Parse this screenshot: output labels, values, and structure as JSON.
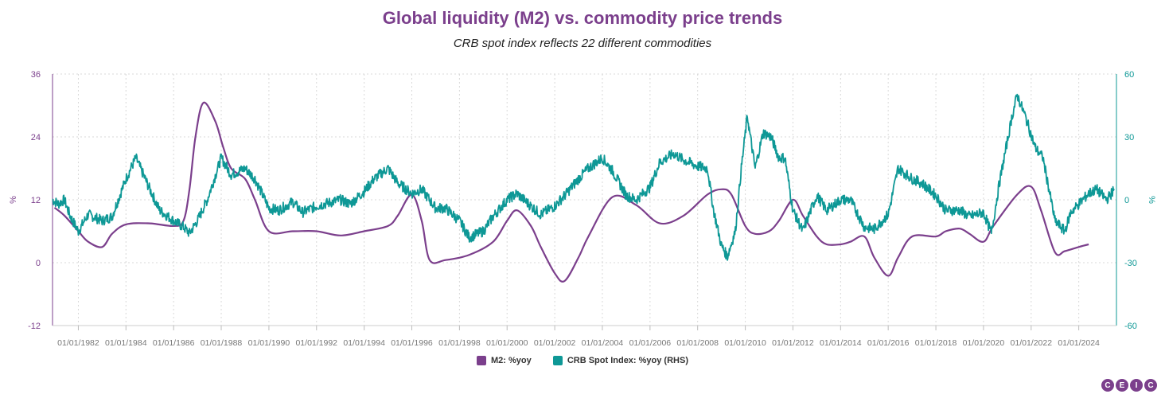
{
  "chart_data": {
    "type": "line",
    "title": "Global liquidity (M2) vs. commodity price trends",
    "subtitle": "CRB spot index reflects 22 different commodities",
    "colors": {
      "title": "#7b3f8c",
      "m2": "#7b3f8c",
      "crb": "#0e9896"
    },
    "x_start": "1980-12-01",
    "x_end": "2025-08-01",
    "x_tick_labels": [
      "01/01/1982",
      "01/01/1984",
      "01/01/1986",
      "01/01/1988",
      "01/01/1990",
      "01/01/1992",
      "01/01/1994",
      "01/01/1996",
      "01/01/1998",
      "01/01/2000",
      "01/01/2002",
      "01/01/2004",
      "01/01/2006",
      "01/01/2008",
      "01/01/2010",
      "01/01/2012",
      "01/01/2014",
      "01/01/2016",
      "01/01/2018",
      "01/01/2020",
      "01/01/2022",
      "01/01/2024"
    ],
    "y_left": {
      "label": "%",
      "min": -12,
      "max": 36,
      "ticks": [
        -12,
        0,
        12,
        24,
        36
      ]
    },
    "y_right": {
      "label": "%",
      "min": -60,
      "max": 60,
      "ticks": [
        -60,
        -30,
        0,
        30,
        60
      ]
    },
    "grid": true,
    "legend_position": "bottom",
    "series": [
      {
        "name": "M2: %yoy",
        "axis": "left",
        "points": [
          [
            "1981-01",
            10.5
          ],
          [
            "1981-06",
            9.0
          ],
          [
            "1982-01",
            6.0
          ],
          [
            "1982-06",
            4.0
          ],
          [
            "1983-01",
            3.0
          ],
          [
            "1983-06",
            5.5
          ],
          [
            "1984-01",
            7.3
          ],
          [
            "1985-01",
            7.5
          ],
          [
            "1986-01",
            7.0
          ],
          [
            "1986-06",
            8.0
          ],
          [
            "1986-09",
            14.0
          ],
          [
            "1986-12",
            24.0
          ],
          [
            "1987-04",
            30.5
          ],
          [
            "1987-10",
            27.0
          ],
          [
            "1988-02",
            22.0
          ],
          [
            "1988-06",
            18.0
          ],
          [
            "1989-01",
            16.0
          ],
          [
            "1989-06",
            12.0
          ],
          [
            "1990-01",
            6.0
          ],
          [
            "1991-01",
            6.0
          ],
          [
            "1992-01",
            6.0
          ],
          [
            "1993-01",
            5.2
          ],
          [
            "1994-01",
            6.0
          ],
          [
            "1995-01",
            7.0
          ],
          [
            "1995-06",
            9.0
          ],
          [
            "1996-01",
            13.0
          ],
          [
            "1996-06",
            8.0
          ],
          [
            "1996-10",
            0.5
          ],
          [
            "1997-06",
            0.5
          ],
          [
            "1998-06",
            1.5
          ],
          [
            "1999-06",
            4.0
          ],
          [
            "2000-01",
            8.0
          ],
          [
            "2000-06",
            10.0
          ],
          [
            "2001-01",
            7.0
          ],
          [
            "2001-06",
            3.0
          ],
          [
            "2002-01",
            -2.0
          ],
          [
            "2002-06",
            -3.5
          ],
          [
            "2003-01",
            1.0
          ],
          [
            "2003-06",
            5.0
          ],
          [
            "2004-06",
            12.5
          ],
          [
            "2005-06",
            11.0
          ],
          [
            "2006-06",
            7.5
          ],
          [
            "2007-06",
            9.0
          ],
          [
            "2008-06",
            13.0
          ],
          [
            "2009-01",
            14.0
          ],
          [
            "2009-06",
            13.0
          ],
          [
            "2010-01",
            7.0
          ],
          [
            "2010-06",
            5.5
          ],
          [
            "2011-01",
            6.0
          ],
          [
            "2011-06",
            8.0
          ],
          [
            "2012-01",
            12.0
          ],
          [
            "2012-06",
            9.0
          ],
          [
            "2013-01",
            5.0
          ],
          [
            "2013-06",
            3.5
          ],
          [
            "2014-01",
            3.5
          ],
          [
            "2014-06",
            4.0
          ],
          [
            "2015-01",
            5.0
          ],
          [
            "2015-06",
            1.0
          ],
          [
            "2016-01",
            -2.5
          ],
          [
            "2016-06",
            1.0
          ],
          [
            "2017-01",
            5.0
          ],
          [
            "2018-01",
            5.0
          ],
          [
            "2018-06",
            6.0
          ],
          [
            "2019-01",
            6.5
          ],
          [
            "2019-06",
            5.5
          ],
          [
            "2020-01",
            4.0
          ],
          [
            "2020-06",
            7.0
          ],
          [
            "2021-06",
            13.0
          ],
          [
            "2022-01",
            14.5
          ],
          [
            "2022-06",
            10.0
          ],
          [
            "2023-01",
            2.0
          ],
          [
            "2023-06",
            2.2
          ],
          [
            "2024-01",
            3.0
          ],
          [
            "2024-06",
            3.5
          ]
        ]
      },
      {
        "name": "CRB Spot Index: %yoy (RHS)",
        "axis": "right",
        "points": [
          [
            "1980-12",
            0
          ],
          [
            "1981-03",
            -2
          ],
          [
            "1981-06",
            0
          ],
          [
            "1981-09",
            -8
          ],
          [
            "1982-01",
            -15
          ],
          [
            "1982-06",
            -7
          ],
          [
            "1983-01",
            -10
          ],
          [
            "1983-06",
            -8
          ],
          [
            "1984-01",
            10
          ],
          [
            "1984-06",
            20
          ],
          [
            "1985-01",
            5
          ],
          [
            "1985-06",
            -5
          ],
          [
            "1986-01",
            -10
          ],
          [
            "1986-06",
            -13
          ],
          [
            "1986-09",
            -16
          ],
          [
            "1987-01",
            -10
          ],
          [
            "1987-06",
            0
          ],
          [
            "1988-01",
            20
          ],
          [
            "1988-06",
            12
          ],
          [
            "1989-01",
            15
          ],
          [
            "1989-06",
            10
          ],
          [
            "1990-01",
            -4
          ],
          [
            "1990-06",
            -5
          ],
          [
            "1991-01",
            -1
          ],
          [
            "1991-06",
            -6
          ],
          [
            "1992-01",
            -3
          ],
          [
            "1993-01",
            0
          ],
          [
            "1993-06",
            -2
          ],
          [
            "1994-01",
            4
          ],
          [
            "1994-06",
            10
          ],
          [
            "1995-01",
            15
          ],
          [
            "1995-06",
            8
          ],
          [
            "1996-01",
            3
          ],
          [
            "1996-06",
            5
          ],
          [
            "1997-01",
            -4
          ],
          [
            "1997-06",
            -4
          ],
          [
            "1998-01",
            -10
          ],
          [
            "1998-06",
            -18
          ],
          [
            "1999-01",
            -15
          ],
          [
            "1999-06",
            -8
          ],
          [
            "2000-01",
            0
          ],
          [
            "2000-06",
            3
          ],
          [
            "2001-01",
            -3
          ],
          [
            "2001-06",
            -7
          ],
          [
            "2002-01",
            -3
          ],
          [
            "2002-06",
            2
          ],
          [
            "2003-01",
            10
          ],
          [
            "2003-06",
            15
          ],
          [
            "2004-01",
            20
          ],
          [
            "2004-06",
            14
          ],
          [
            "2005-01",
            2
          ],
          [
            "2005-06",
            0
          ],
          [
            "2006-01",
            6
          ],
          [
            "2006-06",
            18
          ],
          [
            "2007-01",
            22
          ],
          [
            "2007-06",
            19
          ],
          [
            "2008-01",
            16
          ],
          [
            "2008-06",
            15
          ],
          [
            "2008-09",
            -5
          ],
          [
            "2009-01",
            -22
          ],
          [
            "2009-04",
            -27
          ],
          [
            "2009-08",
            -15
          ],
          [
            "2009-11",
            15
          ],
          [
            "2010-02",
            40
          ],
          [
            "2010-06",
            15
          ],
          [
            "2010-10",
            32
          ],
          [
            "2011-02",
            30
          ],
          [
            "2011-06",
            20
          ],
          [
            "2011-09",
            20
          ],
          [
            "2012-01",
            -5
          ],
          [
            "2012-06",
            -15
          ],
          [
            "2012-10",
            -5
          ],
          [
            "2013-01",
            2
          ],
          [
            "2013-06",
            -5
          ],
          [
            "2014-01",
            0
          ],
          [
            "2014-06",
            0
          ],
          [
            "2015-01",
            -13
          ],
          [
            "2015-06",
            -14
          ],
          [
            "2016-01",
            -7
          ],
          [
            "2016-06",
            15
          ],
          [
            "2017-01",
            10
          ],
          [
            "2017-06",
            8
          ],
          [
            "2018-01",
            2
          ],
          [
            "2018-06",
            -5
          ],
          [
            "2019-01",
            -5
          ],
          [
            "2019-06",
            -8
          ],
          [
            "2020-01",
            -6
          ],
          [
            "2020-05",
            -16
          ],
          [
            "2020-09",
            8
          ],
          [
            "2021-03",
            38
          ],
          [
            "2021-06",
            50
          ],
          [
            "2021-10",
            40
          ],
          [
            "2022-03",
            25
          ],
          [
            "2022-07",
            20
          ],
          [
            "2023-01",
            -10
          ],
          [
            "2023-06",
            -15
          ],
          [
            "2023-09",
            -6
          ],
          [
            "2024-01",
            -2
          ],
          [
            "2024-06",
            3
          ],
          [
            "2024-10",
            5
          ],
          [
            "2025-03",
            0
          ],
          [
            "2025-07",
            5
          ]
        ]
      }
    ]
  },
  "branding": {
    "logo_letters": [
      "C",
      "E",
      "I",
      "C"
    ]
  }
}
